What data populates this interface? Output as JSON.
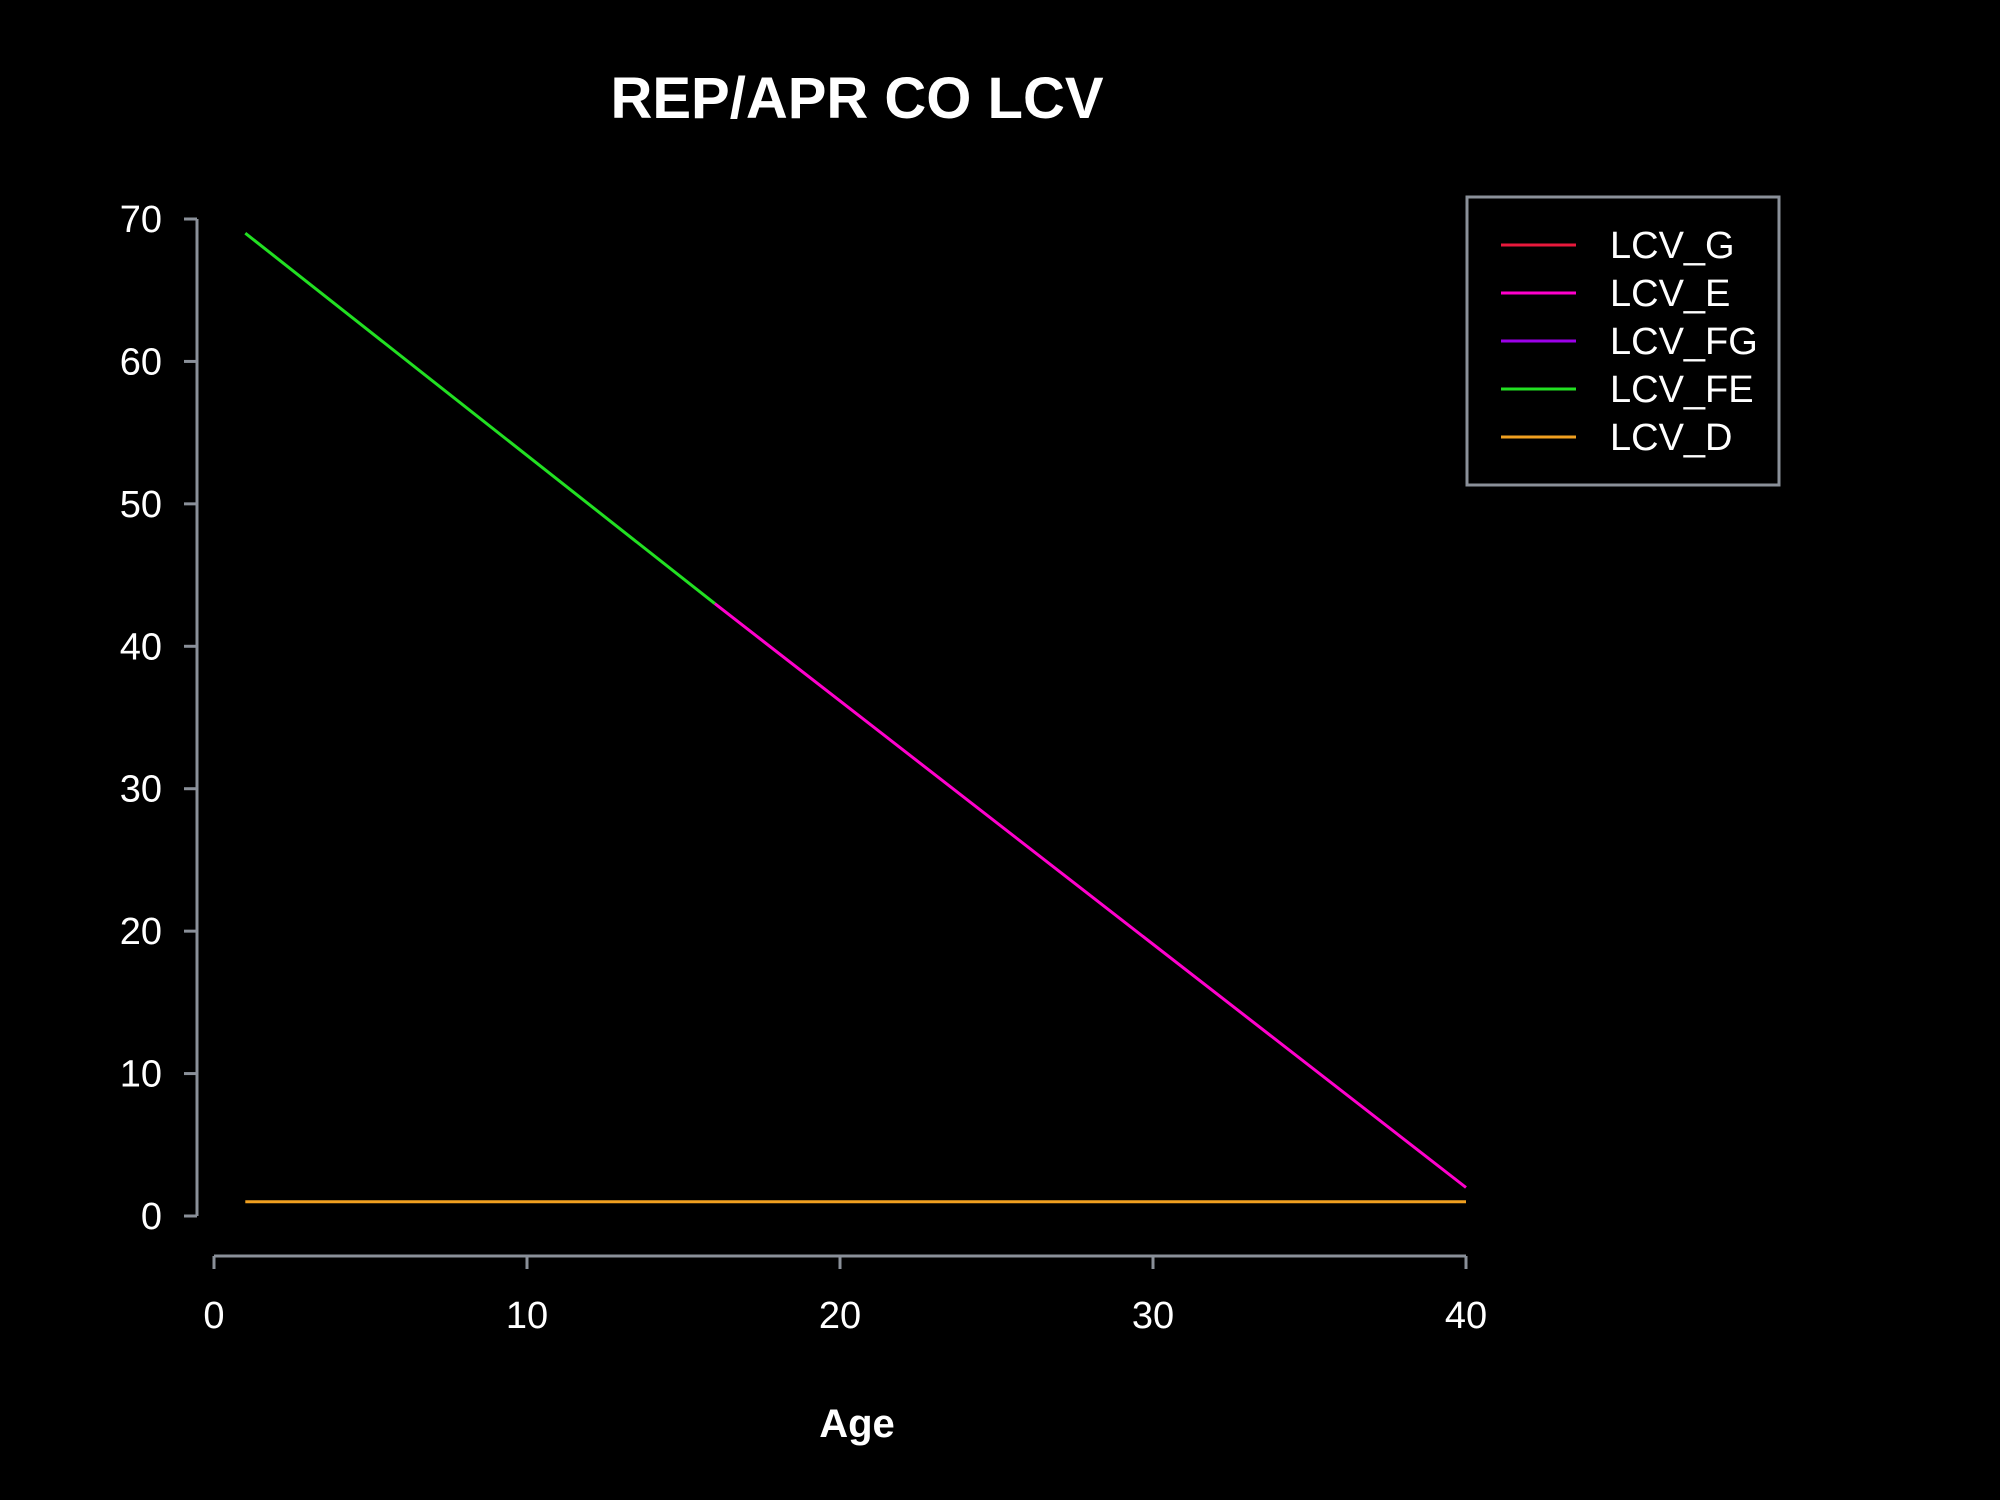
{
  "chart_data": {
    "type": "line",
    "title": "REP/APR CO  LCV",
    "xlabel": "Age",
    "ylabel": "",
    "xlim": [
      0,
      40
    ],
    "ylim": [
      0,
      70
    ],
    "x_ticks": [
      "0",
      "10",
      "20",
      "30",
      "40"
    ],
    "y_ticks": [
      "0",
      "10",
      "20",
      "30",
      "40",
      "50",
      "60",
      "70"
    ],
    "grid": false,
    "legend_position": "top-right",
    "background": "#000000",
    "series": [
      {
        "name": "LCV_G",
        "color": "#e8193c",
        "x": [],
        "y": []
      },
      {
        "name": "LCV_E",
        "color": "#ff00cc",
        "x": [
          16,
          40
        ],
        "y": [
          43,
          2
        ]
      },
      {
        "name": "LCV_FG",
        "color": "#9b00e8",
        "x": [],
        "y": []
      },
      {
        "name": "LCV_FE",
        "color": "#22e022",
        "x": [
          1,
          16
        ],
        "y": [
          69,
          43
        ]
      },
      {
        "name": "LCV_D",
        "color": "#f0a020",
        "x": [
          1,
          40
        ],
        "y": [
          1,
          1
        ]
      }
    ]
  }
}
